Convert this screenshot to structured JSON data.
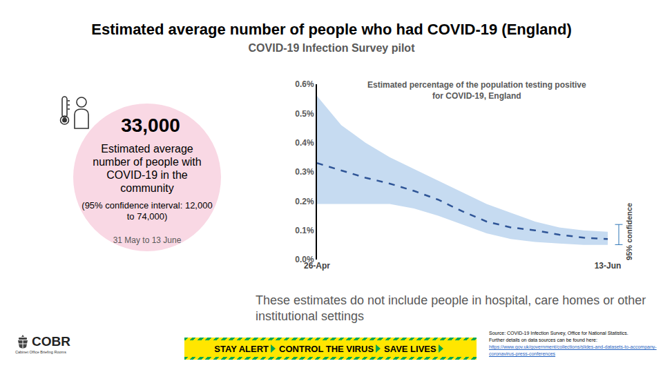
{
  "header": {
    "title": "Estimated average number of people who had COVID-19 (England)",
    "subtitle": "COVID-19 Infection Survey pilot"
  },
  "summary": {
    "value": "33,000",
    "description": "Estimated average number of people with COVID-19 in the community",
    "interval": "(95% confidence interval: 12,000 to 74,000)",
    "period": "31 May to 13 June"
  },
  "chart_data": {
    "type": "line",
    "title": "Estimated percentage of the population testing positive\nfor COVID-19, England",
    "categories": [
      "26-Apr",
      null,
      null,
      null,
      null,
      null,
      null,
      null,
      null,
      null,
      null,
      null,
      "13-Jun"
    ],
    "values": [
      0.33,
      0.305,
      0.28,
      0.26,
      0.235,
      0.205,
      0.165,
      0.13,
      0.11,
      0.1,
      0.085,
      0.075,
      0.07
    ],
    "ci_lower": [
      0.19,
      0.19,
      0.19,
      0.19,
      0.175,
      0.15,
      0.12,
      0.09,
      0.07,
      0.06,
      0.055,
      0.05,
      0.05
    ],
    "ci_upper": [
      0.56,
      0.46,
      0.4,
      0.35,
      0.31,
      0.27,
      0.23,
      0.19,
      0.16,
      0.13,
      0.11,
      0.1,
      0.095
    ],
    "color": "#2f5597",
    "line_style": "dashed",
    "ylim": [
      0,
      0.6
    ],
    "yticks": [
      {
        "value": 0,
        "label": "0.0%"
      },
      {
        "value": 0.1,
        "label": "0.1%"
      },
      {
        "value": 0.2,
        "label": "0.2%"
      },
      {
        "value": 0.3,
        "label": "0.3%"
      },
      {
        "value": 0.4,
        "label": "0.4%"
      },
      {
        "value": 0.5,
        "label": "0.5%"
      },
      {
        "value": 0.6,
        "label": "0.6%"
      }
    ],
    "grid": false,
    "band_label": "95% confidence"
  },
  "note": "These estimates do not include people in hospital, care homes or other institutional settings",
  "source": {
    "text": "Source:  COVID-19  Infection Survey, Office for National Statistics.",
    "details": "Further details on data sources can be found here:",
    "link": "https://www.gov.uk/government/collections/slides-and-datasets-to-accompany-coronavirus-press-conferences"
  },
  "logo": {
    "name": "COBR",
    "subtitle": "Cabinet Office Briefing Rooms"
  },
  "banner": [
    "STAY ALERT",
    "CONTROL THE VIRUS",
    "SAVE LIVES"
  ]
}
